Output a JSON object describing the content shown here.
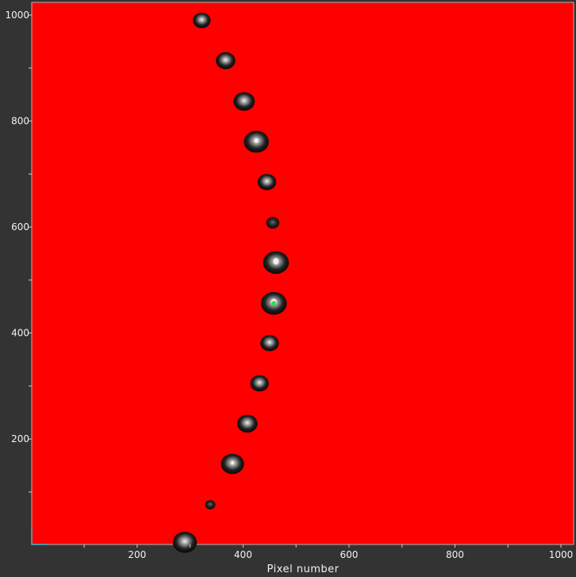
{
  "colors": {
    "background": "#333333",
    "plot_fill": "#ff0000",
    "plot_border": "#b5b5b5",
    "spot_dark": "#111111",
    "spot_core": "#e8e8e8",
    "spot_peak": "#2fe04a",
    "tick_text": "#f2f2f2"
  },
  "chart_data": {
    "type": "scatter",
    "title": "",
    "xlabel": "Pixel number",
    "ylabel": "",
    "xlim": [
      1,
      1024
    ],
    "ylim": [
      1,
      1024
    ],
    "grid": false,
    "x_ticks": [
      "200",
      "400",
      "600",
      "800",
      "1000"
    ],
    "y_ticks": [
      "200",
      "400",
      "600",
      "800",
      "1000"
    ],
    "series": [
      {
        "points": [
          {
            "x": 322,
            "y": 990,
            "brightness": 0.25,
            "size": 0.6
          },
          {
            "x": 367,
            "y": 914,
            "brightness": 0.25,
            "size": 0.7
          },
          {
            "x": 402,
            "y": 837,
            "brightness": 0.4,
            "size": 0.8
          },
          {
            "x": 425,
            "y": 761,
            "brightness": 0.7,
            "size": 1.0
          },
          {
            "x": 445,
            "y": 685,
            "brightness": 0.3,
            "size": 0.65
          },
          {
            "x": 456,
            "y": 608,
            "brightness": 0.1,
            "size": 0.35
          },
          {
            "x": 462,
            "y": 533,
            "brightness": 0.9,
            "size": 1.05
          },
          {
            "x": 458,
            "y": 456,
            "brightness": 0.95,
            "size": 1.05,
            "peak": true
          },
          {
            "x": 450,
            "y": 381,
            "brightness": 0.3,
            "size": 0.65
          },
          {
            "x": 431,
            "y": 305,
            "brightness": 0.35,
            "size": 0.65
          },
          {
            "x": 408,
            "y": 229,
            "brightness": 0.4,
            "size": 0.75
          },
          {
            "x": 380,
            "y": 153,
            "brightness": 0.55,
            "size": 0.9
          },
          {
            "x": 338,
            "y": 76,
            "brightness": 0.05,
            "size": 0.2
          },
          {
            "x": 290,
            "y": 5,
            "brightness": 0.4,
            "size": 0.95
          }
        ]
      }
    ]
  }
}
